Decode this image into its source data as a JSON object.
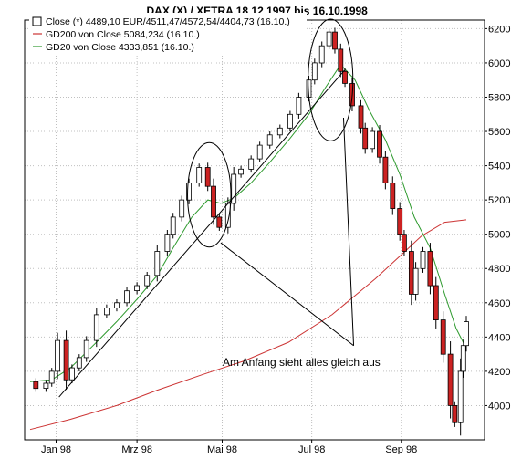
{
  "chart_data": {
    "type": "candlestick",
    "title": ".DAX (X) / XETRA 18.12.1997 bis 16.10.1998",
    "grid": true,
    "legend_position": "top-left",
    "y_axis": {
      "side": "right",
      "ylim": [
        3800,
        6250
      ],
      "ticks": [
        4000,
        4200,
        4400,
        4600,
        4800,
        5000,
        5200,
        5400,
        5600,
        5800,
        6000,
        6200
      ]
    },
    "x_axis": {
      "x_start": "1997-12-18",
      "x_end": "1998-10-16",
      "tick_labels": [
        {
          "label": "Jan 98",
          "date": "1998-01-05"
        },
        {
          "label": "Mrz 98",
          "date": "1998-03-02"
        },
        {
          "label": "Mai 98",
          "date": "1998-04-30"
        },
        {
          "label": "Jul 98",
          "date": "1998-07-01"
        },
        {
          "label": "Sep 98",
          "date": "1998-09-01"
        }
      ]
    },
    "legend": [
      {
        "text": "Close (*) 4489,10 EUR/4511,47/4572,54/4404,73 (16.10.)",
        "symbol": "candle",
        "color": "#000000"
      },
      {
        "text": "GD200 von Close 5084,234 (16.10.)",
        "symbol": "line",
        "color": "#cc3333"
      },
      {
        "text": "GD20 von Close 4333,851 (16.10.)",
        "symbol": "line",
        "color": "#2e9a2e"
      }
    ],
    "colors": {
      "up": "#ffffff",
      "down": "#cc2222",
      "wick": "#000000",
      "gd200": "#cc3333",
      "gd20": "#2e9a2e",
      "grid": "#c0c0c0"
    },
    "close_series": [
      [
        "1997-12-18",
        4140
      ],
      [
        "1997-12-22",
        4100
      ],
      [
        "1997-12-29",
        4130
      ],
      [
        "1998-01-02",
        4200
      ],
      [
        "1998-01-06",
        4380
      ],
      [
        "1998-01-12",
        4150
      ],
      [
        "1998-01-16",
        4220
      ],
      [
        "1998-01-21",
        4280
      ],
      [
        "1998-01-26",
        4380
      ],
      [
        "1998-02-02",
        4530
      ],
      [
        "1998-02-09",
        4570
      ],
      [
        "1998-02-16",
        4600
      ],
      [
        "1998-02-23",
        4670
      ],
      [
        "1998-03-02",
        4700
      ],
      [
        "1998-03-09",
        4760
      ],
      [
        "1998-03-16",
        4900
      ],
      [
        "1998-03-23",
        5000
      ],
      [
        "1998-03-27",
        5100
      ],
      [
        "1998-04-02",
        5200
      ],
      [
        "1998-04-07",
        5300
      ],
      [
        "1998-04-14",
        5390
      ],
      [
        "1998-04-20",
        5280
      ],
      [
        "1998-04-24",
        5100
      ],
      [
        "1998-04-28",
        5040
      ],
      [
        "1998-05-04",
        5180
      ],
      [
        "1998-05-08",
        5350
      ],
      [
        "1998-05-13",
        5380
      ],
      [
        "1998-05-20",
        5440
      ],
      [
        "1998-05-26",
        5520
      ],
      [
        "1998-06-02",
        5580
      ],
      [
        "1998-06-09",
        5620
      ],
      [
        "1998-06-16",
        5700
      ],
      [
        "1998-06-22",
        5800
      ],
      [
        "1998-06-29",
        5900
      ],
      [
        "1998-07-03",
        6000
      ],
      [
        "1998-07-08",
        6100
      ],
      [
        "1998-07-13",
        6180
      ],
      [
        "1998-07-17",
        6080
      ],
      [
        "1998-07-21",
        5950
      ],
      [
        "1998-07-24",
        5880
      ],
      [
        "1998-07-29",
        5750
      ],
      [
        "1998-08-04",
        5620
      ],
      [
        "1998-08-07",
        5500
      ],
      [
        "1998-08-12",
        5600
      ],
      [
        "1998-08-17",
        5450
      ],
      [
        "1998-08-21",
        5300
      ],
      [
        "1998-08-26",
        5150
      ],
      [
        "1998-08-31",
        5000
      ],
      [
        "1998-09-03",
        4900
      ],
      [
        "1998-09-08",
        4650
      ],
      [
        "1998-09-11",
        4800
      ],
      [
        "1998-09-16",
        4900
      ],
      [
        "1998-09-21",
        4700
      ],
      [
        "1998-09-25",
        4500
      ],
      [
        "1998-09-30",
        4300
      ],
      [
        "1998-10-05",
        4000
      ],
      [
        "1998-10-08",
        3900
      ],
      [
        "1998-10-12",
        4200
      ],
      [
        "1998-10-14",
        4350
      ],
      [
        "1998-10-16",
        4489.1
      ]
    ],
    "gd200_series": [
      [
        "1997-12-18",
        3860
      ],
      [
        "1998-01-15",
        3920
      ],
      [
        "1998-02-16",
        4000
      ],
      [
        "1998-03-16",
        4090
      ],
      [
        "1998-04-16",
        4180
      ],
      [
        "1998-05-15",
        4260
      ],
      [
        "1998-06-15",
        4370
      ],
      [
        "1998-07-15",
        4530
      ],
      [
        "1998-08-14",
        4740
      ],
      [
        "1998-09-01",
        4880
      ],
      [
        "1998-09-15",
        4990
      ],
      [
        "1998-10-01",
        5070
      ],
      [
        "1998-10-16",
        5084.234
      ]
    ],
    "gd20_series": [
      [
        "1997-12-18",
        4140
      ],
      [
        "1998-01-02",
        4150
      ],
      [
        "1998-01-15",
        4220
      ],
      [
        "1998-02-02",
        4370
      ],
      [
        "1998-02-16",
        4490
      ],
      [
        "1998-03-02",
        4620
      ],
      [
        "1998-03-16",
        4760
      ],
      [
        "1998-03-27",
        4920
      ],
      [
        "1998-04-09",
        5100
      ],
      [
        "1998-04-20",
        5200
      ],
      [
        "1998-04-29",
        5180
      ],
      [
        "1998-05-08",
        5210
      ],
      [
        "1998-05-20",
        5300
      ],
      [
        "1998-06-02",
        5420
      ],
      [
        "1998-06-16",
        5560
      ],
      [
        "1998-06-29",
        5700
      ],
      [
        "1998-07-10",
        5850
      ],
      [
        "1998-07-21",
        5990
      ],
      [
        "1998-07-31",
        5900
      ],
      [
        "1998-08-10",
        5720
      ],
      [
        "1998-08-21",
        5550
      ],
      [
        "1998-08-31",
        5350
      ],
      [
        "1998-09-10",
        5100
      ],
      [
        "1998-09-21",
        4920
      ],
      [
        "1998-10-01",
        4650
      ],
      [
        "1998-10-09",
        4450
      ],
      [
        "1998-10-16",
        4333.851
      ]
    ],
    "trendlines": [
      {
        "from": [
          "1998-01-07",
          4050
        ],
        "to": [
          "1998-07-24",
          5960
        ]
      }
    ],
    "annotation": {
      "text": "Am Anfang sieht alles gleich aus",
      "pointers": [
        {
          "from": [
            "1998-07-30",
            4350
          ],
          "to": [
            "1998-04-29",
            4950
          ]
        },
        {
          "from": [
            "1998-07-30",
            4350
          ],
          "to": [
            "1998-07-23",
            5680
          ]
        }
      ]
    },
    "highlight_ellipses": [
      {
        "center": [
          "1998-04-21",
          5230
        ],
        "start": "1998-04-06",
        "end": "1998-05-06",
        "high": 5530,
        "low": 4920
      },
      {
        "center": [
          "1998-07-14",
          5900
        ],
        "start": "1998-06-29",
        "end": "1998-07-30",
        "high": 6250,
        "low": 5540
      }
    ]
  }
}
